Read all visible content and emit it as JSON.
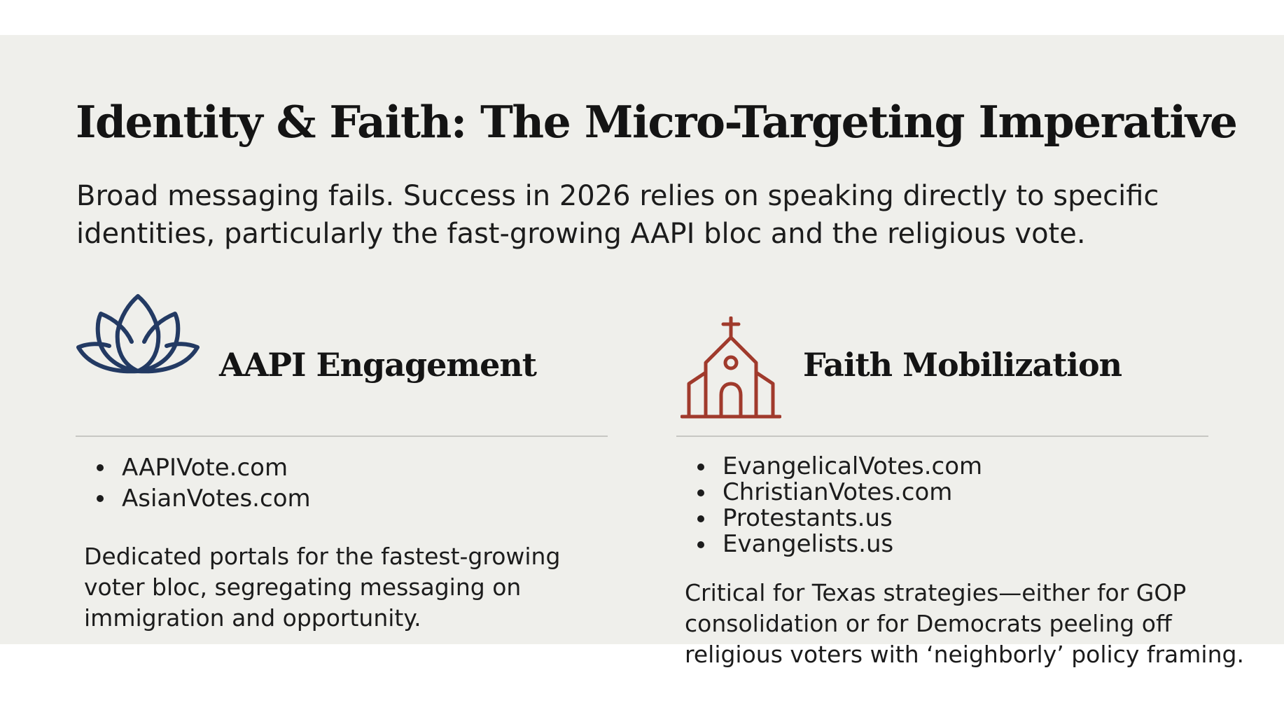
{
  "title": "Identity & Faith: The Micro-Targeting Imperative",
  "subtitle": "Broad messaging fails. Success in 2026 relies on speaking directly to specific identities, particularly the fast-growing AAPI bloc and the religious vote.",
  "colors": {
    "background": "#efefeb",
    "aapi_icon": "#233a63",
    "faith_icon": "#a03a2c"
  },
  "columns": [
    {
      "icon": "lotus-icon",
      "heading": "AAPI Engagement",
      "items": [
        "AAPIVote.com",
        "AsianVotes.com"
      ],
      "description_lines": [
        "Dedicated portals for the fastest-growing",
        "voter bloc, segregating messaging on",
        "immigration and opportunity."
      ]
    },
    {
      "icon": "church-icon",
      "heading": "Faith Mobilization",
      "items": [
        "EvangelicalVotes.com",
        "ChristianVotes.com",
        "Protestants.us",
        "Evangelists.us"
      ],
      "description_lines": [
        "Critical for Texas strategies—either for GOP",
        "consolidation or for Democrats peeling off",
        "religious voters with ‘neighborly’ policy framing."
      ]
    }
  ]
}
